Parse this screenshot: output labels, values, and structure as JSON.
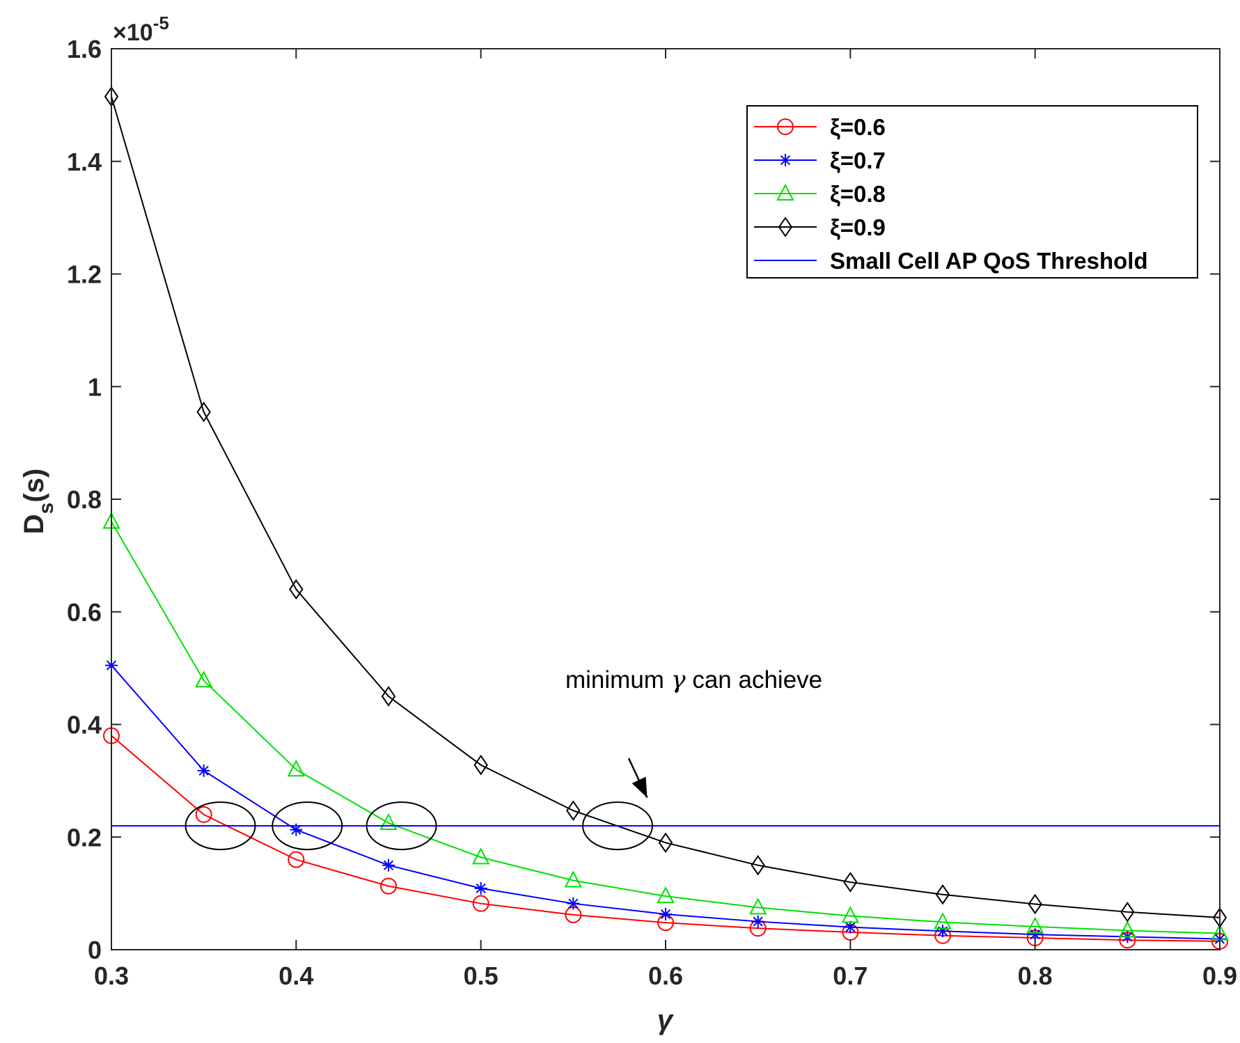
{
  "chart_data": {
    "type": "line",
    "xlabel": "γ",
    "ylabel_main": "D",
    "ylabel_sub": "s",
    "ylabel_tail": "(s)",
    "y_exponent_prefix": "×10",
    "y_exponent_power": "-5",
    "xlim": [
      0.3,
      0.9
    ],
    "ylim": [
      0,
      1.6
    ],
    "x_ticks": [
      0.3,
      0.4,
      0.5,
      0.6,
      0.7,
      0.8,
      0.9
    ],
    "x_tick_labels": [
      "0.3",
      "0.4",
      "0.5",
      "0.6",
      "0.7",
      "0.8",
      "0.9"
    ],
    "y_ticks": [
      0,
      0.2,
      0.4,
      0.6,
      0.8,
      1.0,
      1.2,
      1.4,
      1.6
    ],
    "y_tick_labels": [
      "0",
      "0.2",
      "0.4",
      "0.6",
      "0.8",
      "1",
      "1.2",
      "1.4",
      "1.6"
    ],
    "grid": false,
    "legend_placement": "top-right",
    "x": [
      0.3,
      0.35,
      0.4,
      0.45,
      0.5,
      0.55,
      0.6,
      0.65,
      0.7,
      0.75,
      0.8,
      0.85,
      0.9
    ],
    "series": [
      {
        "name": "ξ=0.6",
        "color": "#ff0000",
        "marker": "circle",
        "values": [
          0.38,
          0.24,
          0.16,
          0.113,
          0.082,
          0.062,
          0.048,
          0.038,
          0.031,
          0.025,
          0.021,
          0.017,
          0.015
        ]
      },
      {
        "name": "ξ=0.7",
        "color": "#0000ff",
        "marker": "asterisk",
        "values": [
          0.505,
          0.318,
          0.213,
          0.15,
          0.109,
          0.082,
          0.063,
          0.05,
          0.04,
          0.033,
          0.027,
          0.023,
          0.019
        ]
      },
      {
        "name": "ξ=0.8",
        "color": "#00e000",
        "marker": "triangle",
        "values": [
          0.76,
          0.478,
          0.32,
          0.225,
          0.164,
          0.123,
          0.095,
          0.075,
          0.06,
          0.049,
          0.041,
          0.034,
          0.029
        ]
      },
      {
        "name": "ξ=0.9",
        "color": "#000000",
        "marker": "diamond",
        "values": [
          1.515,
          0.955,
          0.64,
          0.45,
          0.328,
          0.247,
          0.19,
          0.15,
          0.12,
          0.098,
          0.081,
          0.067,
          0.057
        ]
      }
    ],
    "threshold": {
      "name": "Small Cell AP QoS Threshold",
      "color": "#0000ff",
      "value": 0.22
    },
    "annotation": {
      "text_before": "minimum ",
      "symbol": "γ",
      "text_after": " can achieve",
      "arrow_from": [
        0.58,
        0.34
      ],
      "arrow_to": [
        0.59,
        0.27
      ]
    },
    "highlight_ellipses": [
      {
        "cx": 0.359,
        "cy": 0.22
      },
      {
        "cx": 0.406,
        "cy": 0.22
      },
      {
        "cx": 0.457,
        "cy": 0.22
      },
      {
        "cx": 0.574,
        "cy": 0.22
      }
    ]
  }
}
